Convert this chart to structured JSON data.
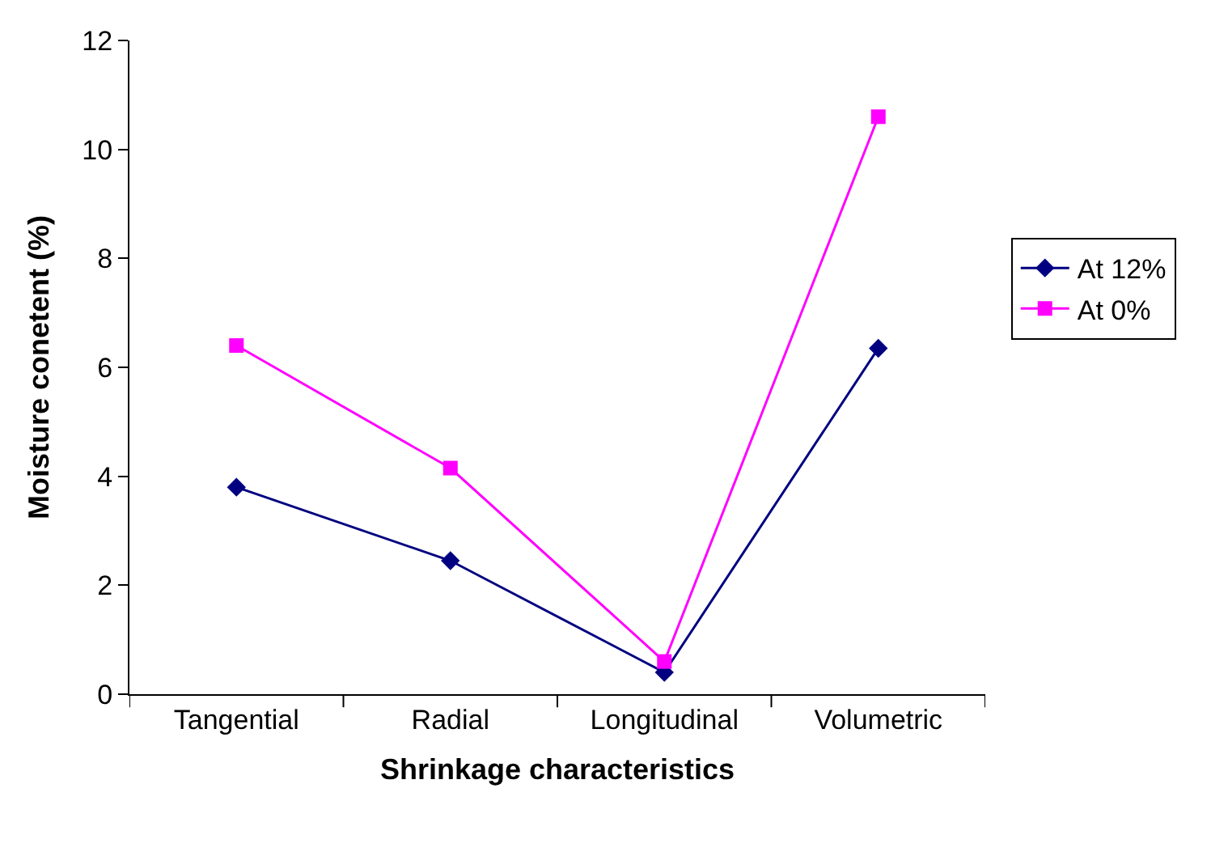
{
  "chart_data": {
    "type": "line",
    "xlabel": "Shrinkage characteristics",
    "ylabel": "Moisture conetent (%)",
    "categories": [
      "Tangential",
      "Radial",
      "Longitudinal",
      "Volumetric"
    ],
    "series": [
      {
        "name": "At 12%",
        "color": "#000080",
        "marker": "diamond",
        "values": [
          3.8,
          2.45,
          0.4,
          6.35
        ]
      },
      {
        "name": "At 0%",
        "color": "#ff00ff",
        "marker": "square",
        "values": [
          6.4,
          4.15,
          0.6,
          10.6
        ]
      }
    ],
    "ylim": [
      0,
      12
    ],
    "yticks": [
      0,
      2,
      4,
      6,
      8,
      10,
      12
    ],
    "legend": "right",
    "line_style": "solid"
  }
}
